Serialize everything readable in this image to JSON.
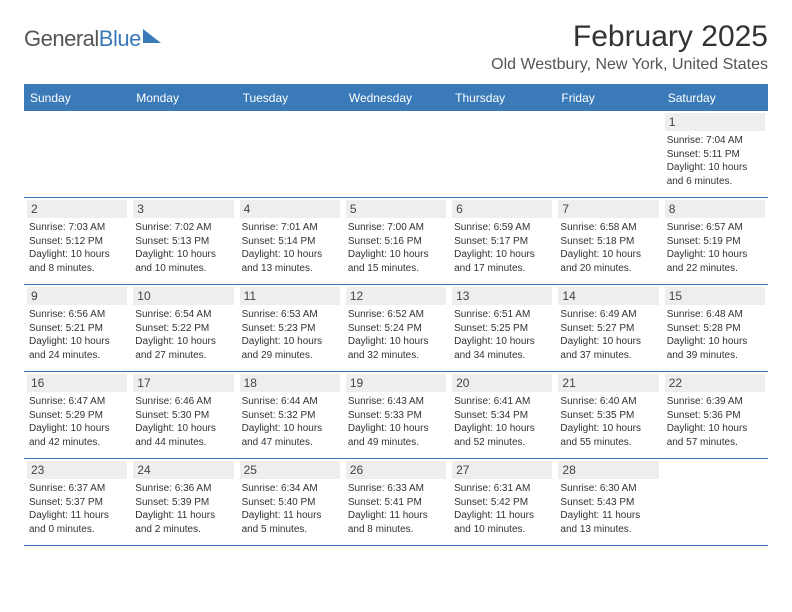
{
  "logo": {
    "text_general": "General",
    "text_blue": "Blue"
  },
  "title": "February 2025",
  "location": "Old Westbury, New York, United States",
  "colors": {
    "brand_blue": "#3a7ab8",
    "daynum_bg": "#eeeeee",
    "text": "#333333",
    "title_text": "#333333",
    "location_text": "#555555"
  },
  "day_headers": [
    "Sunday",
    "Monday",
    "Tuesday",
    "Wednesday",
    "Thursday",
    "Friday",
    "Saturday"
  ],
  "weeks": [
    [
      {
        "empty": true
      },
      {
        "empty": true
      },
      {
        "empty": true
      },
      {
        "empty": true
      },
      {
        "empty": true
      },
      {
        "empty": true
      },
      {
        "num": "1",
        "sunrise": "Sunrise: 7:04 AM",
        "sunset": "Sunset: 5:11 PM",
        "daylight": "Daylight: 10 hours and 6 minutes."
      }
    ],
    [
      {
        "num": "2",
        "sunrise": "Sunrise: 7:03 AM",
        "sunset": "Sunset: 5:12 PM",
        "daylight": "Daylight: 10 hours and 8 minutes."
      },
      {
        "num": "3",
        "sunrise": "Sunrise: 7:02 AM",
        "sunset": "Sunset: 5:13 PM",
        "daylight": "Daylight: 10 hours and 10 minutes."
      },
      {
        "num": "4",
        "sunrise": "Sunrise: 7:01 AM",
        "sunset": "Sunset: 5:14 PM",
        "daylight": "Daylight: 10 hours and 13 minutes."
      },
      {
        "num": "5",
        "sunrise": "Sunrise: 7:00 AM",
        "sunset": "Sunset: 5:16 PM",
        "daylight": "Daylight: 10 hours and 15 minutes."
      },
      {
        "num": "6",
        "sunrise": "Sunrise: 6:59 AM",
        "sunset": "Sunset: 5:17 PM",
        "daylight": "Daylight: 10 hours and 17 minutes."
      },
      {
        "num": "7",
        "sunrise": "Sunrise: 6:58 AM",
        "sunset": "Sunset: 5:18 PM",
        "daylight": "Daylight: 10 hours and 20 minutes."
      },
      {
        "num": "8",
        "sunrise": "Sunrise: 6:57 AM",
        "sunset": "Sunset: 5:19 PM",
        "daylight": "Daylight: 10 hours and 22 minutes."
      }
    ],
    [
      {
        "num": "9",
        "sunrise": "Sunrise: 6:56 AM",
        "sunset": "Sunset: 5:21 PM",
        "daylight": "Daylight: 10 hours and 24 minutes."
      },
      {
        "num": "10",
        "sunrise": "Sunrise: 6:54 AM",
        "sunset": "Sunset: 5:22 PM",
        "daylight": "Daylight: 10 hours and 27 minutes."
      },
      {
        "num": "11",
        "sunrise": "Sunrise: 6:53 AM",
        "sunset": "Sunset: 5:23 PM",
        "daylight": "Daylight: 10 hours and 29 minutes."
      },
      {
        "num": "12",
        "sunrise": "Sunrise: 6:52 AM",
        "sunset": "Sunset: 5:24 PM",
        "daylight": "Daylight: 10 hours and 32 minutes."
      },
      {
        "num": "13",
        "sunrise": "Sunrise: 6:51 AM",
        "sunset": "Sunset: 5:25 PM",
        "daylight": "Daylight: 10 hours and 34 minutes."
      },
      {
        "num": "14",
        "sunrise": "Sunrise: 6:49 AM",
        "sunset": "Sunset: 5:27 PM",
        "daylight": "Daylight: 10 hours and 37 minutes."
      },
      {
        "num": "15",
        "sunrise": "Sunrise: 6:48 AM",
        "sunset": "Sunset: 5:28 PM",
        "daylight": "Daylight: 10 hours and 39 minutes."
      }
    ],
    [
      {
        "num": "16",
        "sunrise": "Sunrise: 6:47 AM",
        "sunset": "Sunset: 5:29 PM",
        "daylight": "Daylight: 10 hours and 42 minutes."
      },
      {
        "num": "17",
        "sunrise": "Sunrise: 6:46 AM",
        "sunset": "Sunset: 5:30 PM",
        "daylight": "Daylight: 10 hours and 44 minutes."
      },
      {
        "num": "18",
        "sunrise": "Sunrise: 6:44 AM",
        "sunset": "Sunset: 5:32 PM",
        "daylight": "Daylight: 10 hours and 47 minutes."
      },
      {
        "num": "19",
        "sunrise": "Sunrise: 6:43 AM",
        "sunset": "Sunset: 5:33 PM",
        "daylight": "Daylight: 10 hours and 49 minutes."
      },
      {
        "num": "20",
        "sunrise": "Sunrise: 6:41 AM",
        "sunset": "Sunset: 5:34 PM",
        "daylight": "Daylight: 10 hours and 52 minutes."
      },
      {
        "num": "21",
        "sunrise": "Sunrise: 6:40 AM",
        "sunset": "Sunset: 5:35 PM",
        "daylight": "Daylight: 10 hours and 55 minutes."
      },
      {
        "num": "22",
        "sunrise": "Sunrise: 6:39 AM",
        "sunset": "Sunset: 5:36 PM",
        "daylight": "Daylight: 10 hours and 57 minutes."
      }
    ],
    [
      {
        "num": "23",
        "sunrise": "Sunrise: 6:37 AM",
        "sunset": "Sunset: 5:37 PM",
        "daylight": "Daylight: 11 hours and 0 minutes."
      },
      {
        "num": "24",
        "sunrise": "Sunrise: 6:36 AM",
        "sunset": "Sunset: 5:39 PM",
        "daylight": "Daylight: 11 hours and 2 minutes."
      },
      {
        "num": "25",
        "sunrise": "Sunrise: 6:34 AM",
        "sunset": "Sunset: 5:40 PM",
        "daylight": "Daylight: 11 hours and 5 minutes."
      },
      {
        "num": "26",
        "sunrise": "Sunrise: 6:33 AM",
        "sunset": "Sunset: 5:41 PM",
        "daylight": "Daylight: 11 hours and 8 minutes."
      },
      {
        "num": "27",
        "sunrise": "Sunrise: 6:31 AM",
        "sunset": "Sunset: 5:42 PM",
        "daylight": "Daylight: 11 hours and 10 minutes."
      },
      {
        "num": "28",
        "sunrise": "Sunrise: 6:30 AM",
        "sunset": "Sunset: 5:43 PM",
        "daylight": "Daylight: 11 hours and 13 minutes."
      },
      {
        "empty": true
      }
    ]
  ]
}
